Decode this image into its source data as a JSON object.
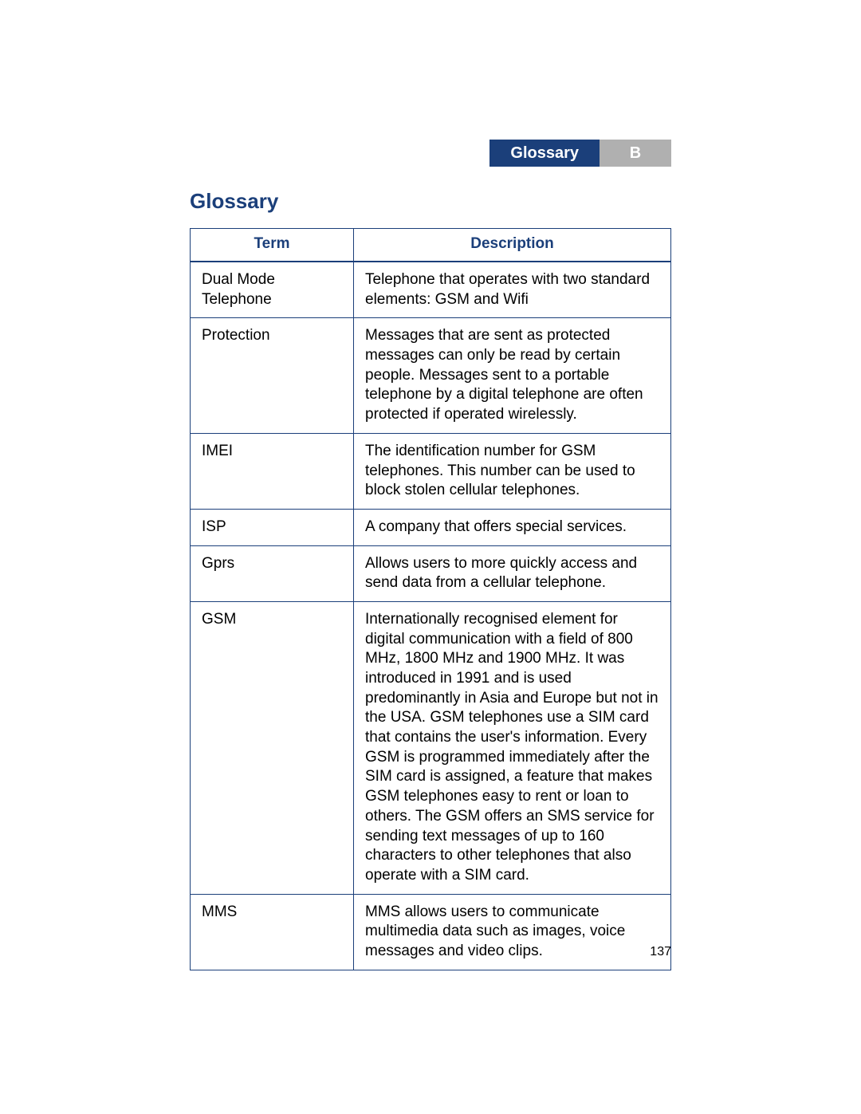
{
  "header": {
    "title": "Glossary",
    "appendix_letter": "B",
    "blue_bg": "#1b3f7a",
    "gray_bg": "#b0b0b0",
    "text_color": "#ffffff"
  },
  "section_title": "Glossary",
  "section_title_color": "#1b3f7a",
  "table": {
    "border_color": "#1b3f7a",
    "header_text_color": "#1b3f7a",
    "cell_text_color": "#000000",
    "columns": [
      "Term",
      "Description"
    ],
    "rows": [
      {
        "term": "Dual Mode Telephone",
        "description": "Telephone that operates with two standard elements: GSM and Wifi"
      },
      {
        "term": "Protection",
        "description": "Messages that are sent as protected messages can only be read by certain people. Messages sent to a portable telephone by a digital telephone are often protected if operated wirelessly."
      },
      {
        "term": "IMEI",
        "description": "The identification number for GSM telephones. This number can be used to block stolen cellular telephones."
      },
      {
        "term": "ISP",
        "description": "A company that offers special services."
      },
      {
        "term": "Gprs",
        "description": "Allows users to more quickly access and send data from a cellular telephone."
      },
      {
        "term": "GSM",
        "description": "Internationally recognised element for digital communication with a field of 800 MHz, 1800 MHz and 1900 MHz. It was introduced in 1991 and is used predominantly in Asia and Europe but not in the USA. GSM telephones use a SIM card that contains the user's information. Every GSM is programmed immediately after the SIM card is assigned, a feature that makes GSM telephones easy to rent or loan to others. The GSM offers an SMS service for sending text messages of up to 160 characters to other telephones that also operate with a SIM card."
      },
      {
        "term": "MMS",
        "description": "MMS allows users to communicate multimedia data such as images, voice messages and video clips."
      }
    ]
  },
  "page_number": "137"
}
